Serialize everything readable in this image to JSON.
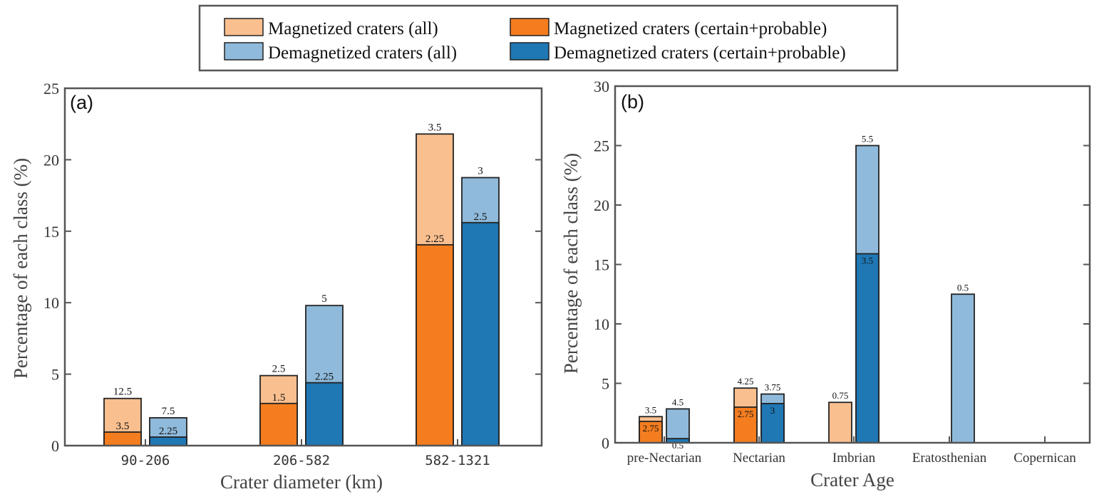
{
  "colors": {
    "mag_all": "#f9bf8f",
    "mag_cp": "#f47d20",
    "demag_all": "#8fbadb",
    "demag_cp": "#1f77b4",
    "axis": "#555555"
  },
  "legend": {
    "items": [
      {
        "label": "Magnetized craters (all)",
        "color_key": "mag_all"
      },
      {
        "label": "Magnetized craters (certain+probable)",
        "color_key": "mag_cp"
      },
      {
        "label": "Demagnetized craters (all)",
        "color_key": "demag_all"
      },
      {
        "label": "Demagnetized craters (certain+probable)",
        "color_key": "demag_cp"
      }
    ]
  },
  "chart_data": [
    {
      "type": "bar",
      "panel_label": "(a)",
      "xlabel": "Crater diameter (km)",
      "ylabel": "Percentage of each class (%)",
      "ylim": [
        0,
        25
      ],
      "yticks": [
        0,
        5,
        10,
        15,
        20,
        25
      ],
      "categories": [
        "90-206",
        "206-582",
        "582-1321"
      ],
      "series": [
        {
          "name": "Magnetized craters (all)",
          "values": [
            3.3,
            4.9,
            21.8
          ],
          "labels": [
            "12.5",
            "2.5",
            "3.5"
          ]
        },
        {
          "name": "Magnetized craters (certain+probable)",
          "values": [
            0.95,
            2.95,
            14.05
          ],
          "labels": [
            "3.5",
            "1.5",
            "2.25"
          ]
        },
        {
          "name": "Demagnetized craters (all)",
          "values": [
            1.95,
            9.8,
            18.75
          ],
          "labels": [
            "7.5",
            "5",
            "3"
          ]
        },
        {
          "name": "Demagnetized craters (certain+probable)",
          "values": [
            0.6,
            4.4,
            15.6
          ],
          "labels": [
            "2.25",
            "2.25",
            "2.5"
          ]
        }
      ]
    },
    {
      "type": "bar",
      "panel_label": "(b)",
      "xlabel": "Crater Age",
      "ylabel": "Percentage of each class (%)",
      "ylim": [
        0,
        30
      ],
      "yticks": [
        0,
        5,
        10,
        15,
        20,
        25,
        30
      ],
      "categories": [
        "pre-Nectarian",
        "Nectarian",
        "Imbrian",
        "Eratosthenian",
        "Copernican"
      ],
      "series": [
        {
          "name": "Magnetized craters (all)",
          "values": [
            2.2,
            4.6,
            3.4,
            null,
            null
          ],
          "labels": [
            "3.5",
            "4.25",
            "0.75",
            "",
            ""
          ]
        },
        {
          "name": "Magnetized craters (certain+probable)",
          "values": [
            1.8,
            3.0,
            null,
            null,
            null
          ],
          "labels": [
            "2.75",
            "2.75",
            "",
            "",
            ""
          ]
        },
        {
          "name": "Demagnetized craters (all)",
          "values": [
            2.85,
            4.1,
            25.0,
            12.5,
            null
          ],
          "labels": [
            "4.5",
            "3.75",
            "5.5",
            "0.5",
            ""
          ]
        },
        {
          "name": "Demagnetized craters (certain+probable)",
          "values": [
            0.35,
            3.3,
            15.9,
            null,
            null
          ],
          "labels": [
            "0.5",
            "3",
            "3.5",
            "",
            ""
          ]
        }
      ]
    }
  ]
}
